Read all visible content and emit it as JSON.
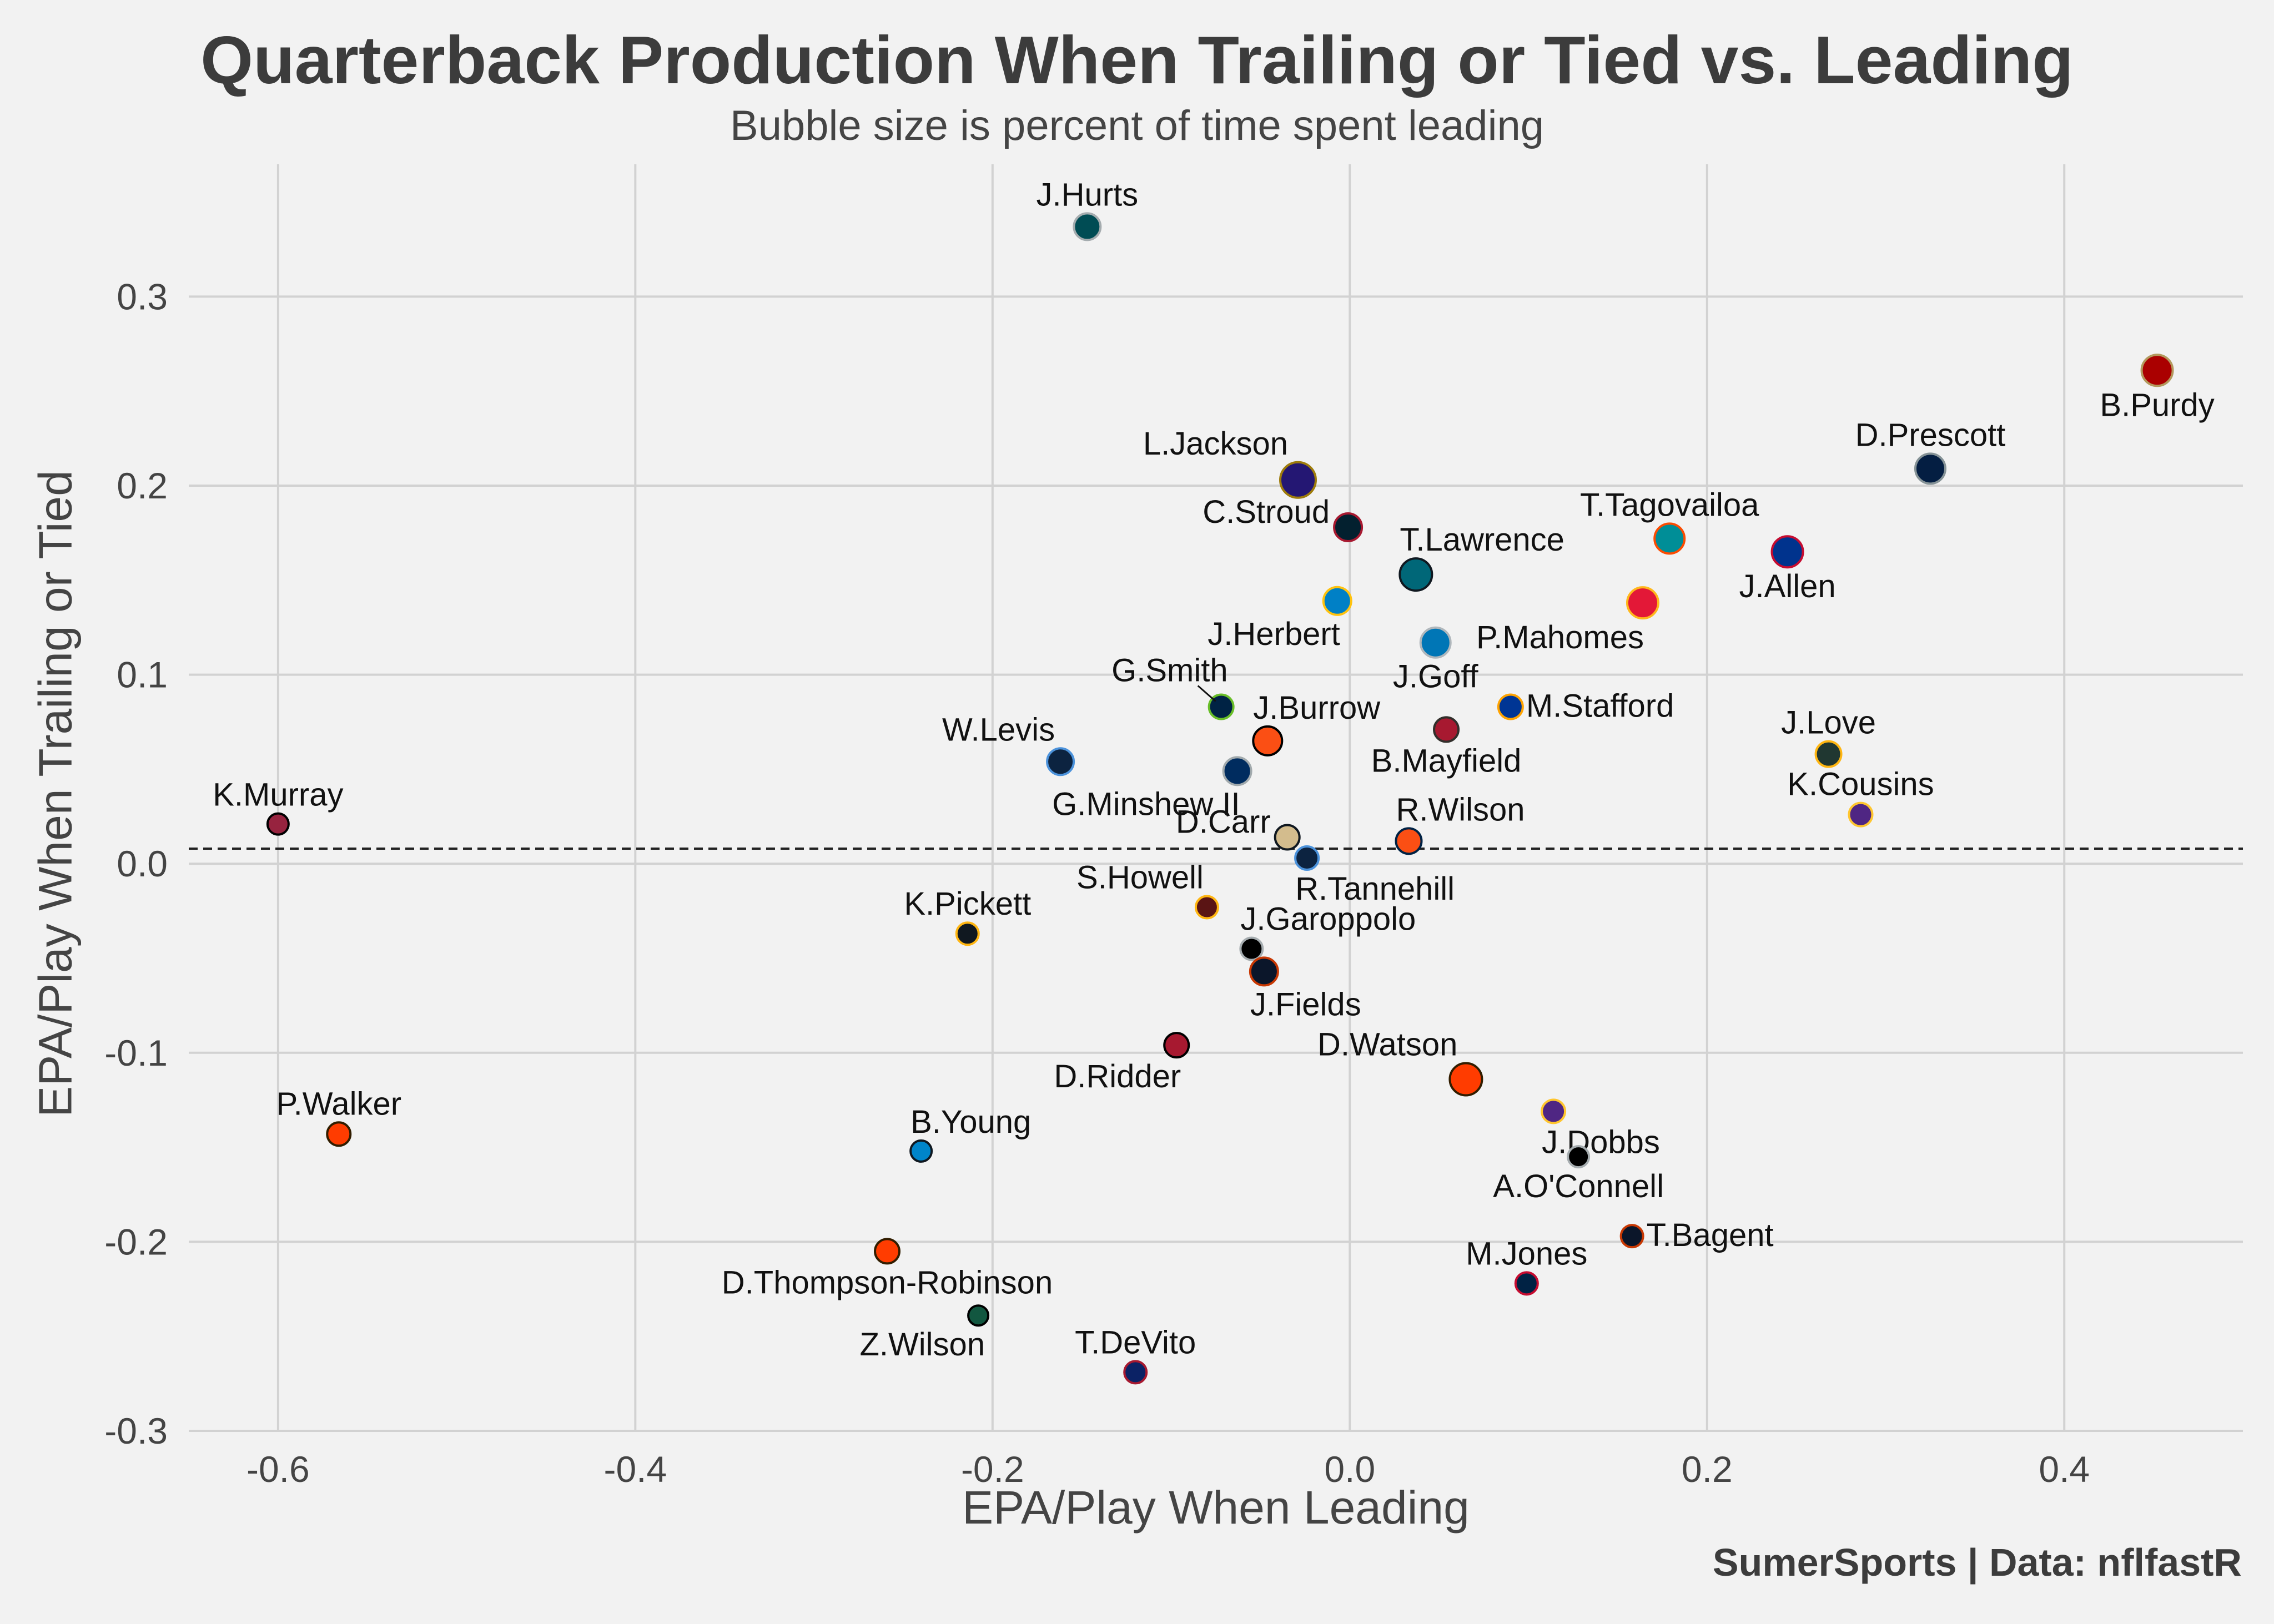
{
  "chart_data": {
    "type": "scatter",
    "title": "Quarterback Production When Trailing or Tied vs. Leading",
    "subtitle": "Bubble size is percent of time spent leading",
    "xlabel": "EPA/Play When Leading",
    "ylabel": "EPA/Play When Trailing or Tied",
    "caption": "SumerSports | Data: nflfastR",
    "xlim": [
      -0.65,
      0.5
    ],
    "ylim": [
      -0.3,
      0.37
    ],
    "xticks": [
      -0.6,
      -0.4,
      -0.2,
      0.0,
      0.2,
      0.4
    ],
    "xtick_labels": [
      "-0.6",
      "-0.4",
      "-0.2",
      "0.0",
      "0.2",
      "0.4"
    ],
    "yticks": [
      -0.3,
      -0.2,
      -0.1,
      0.0,
      0.1,
      0.2,
      0.3
    ],
    "ytick_labels": [
      "-0.3",
      "-0.2",
      "-0.1",
      "0.0",
      "0.1",
      "0.2",
      "0.3"
    ],
    "reference_line_y": 0.008,
    "grid": true,
    "points": [
      {
        "label": "J.Hurts",
        "x": -0.147,
        "y": 0.337,
        "size": 0.55,
        "color": "#004C54",
        "edge": "#A5ACAF",
        "label_pos": "above"
      },
      {
        "label": "B.Purdy",
        "x": 0.452,
        "y": 0.261,
        "size": 0.75,
        "color": "#AA0000",
        "edge": "#B3995D",
        "label_pos": "below"
      },
      {
        "label": "D.Prescott",
        "x": 0.325,
        "y": 0.209,
        "size": 0.7,
        "color": "#041E42",
        "edge": "#869397",
        "label_pos": "above"
      },
      {
        "label": "L.Jackson",
        "x": -0.029,
        "y": 0.203,
        "size": 0.95,
        "color": "#241773",
        "edge": "#9E7C0C",
        "label_pos": "above-left"
      },
      {
        "label": "C.Stroud",
        "x": -0.001,
        "y": 0.178,
        "size": 0.6,
        "color": "#03202F",
        "edge": "#A71930",
        "label_pos": "left"
      },
      {
        "label": "T.Tagovailoa",
        "x": 0.179,
        "y": 0.172,
        "size": 0.7,
        "color": "#008E97",
        "edge": "#FC4C02",
        "label_pos": "above"
      },
      {
        "label": "J.Allen",
        "x": 0.245,
        "y": 0.165,
        "size": 0.75,
        "color": "#00338D",
        "edge": "#C60C30",
        "label_pos": "below"
      },
      {
        "label": "T.Lawrence",
        "x": 0.037,
        "y": 0.153,
        "size": 0.8,
        "color": "#006778",
        "edge": "#101820",
        "label_pos": "above-right"
      },
      {
        "label": "P.Mahomes",
        "x": 0.164,
        "y": 0.138,
        "size": 0.75,
        "color": "#E31837",
        "edge": "#FFB81C",
        "label_pos": "below-left"
      },
      {
        "label": "J.Herbert",
        "x": -0.007,
        "y": 0.139,
        "size": 0.6,
        "color": "#0080C6",
        "edge": "#FFC20E",
        "label_pos": "below-left"
      },
      {
        "label": "J.Goff",
        "x": 0.048,
        "y": 0.117,
        "size": 0.7,
        "color": "#0076B6",
        "edge": "#B0B7BC",
        "label_pos": "below"
      },
      {
        "label": "G.Smith",
        "x": -0.072,
        "y": 0.083,
        "size": 0.45,
        "color": "#002244",
        "edge": "#69BE28",
        "label_pos": "above-left-leader"
      },
      {
        "label": "M.Stafford",
        "x": 0.09,
        "y": 0.083,
        "size": 0.45,
        "color": "#003594",
        "edge": "#FFA300",
        "label_pos": "right"
      },
      {
        "label": "B.Mayfield",
        "x": 0.054,
        "y": 0.071,
        "size": 0.45,
        "color": "#A71930",
        "edge": "#322F2B",
        "label_pos": "below"
      },
      {
        "label": "J.Burrow",
        "x": -0.046,
        "y": 0.065,
        "size": 0.65,
        "color": "#FB4F14",
        "edge": "#000000",
        "label_pos": "above-right"
      },
      {
        "label": "J.Love",
        "x": 0.268,
        "y": 0.058,
        "size": 0.5,
        "color": "#203731",
        "edge": "#FFB612",
        "label_pos": "above"
      },
      {
        "label": "W.Levis",
        "x": -0.162,
        "y": 0.054,
        "size": 0.55,
        "color": "#0C2340",
        "edge": "#4B92DB",
        "label_pos": "above-left"
      },
      {
        "label": "G.Minshew II",
        "x": -0.063,
        "y": 0.049,
        "size": 0.6,
        "color": "#002C5F",
        "edge": "#A2AAAD",
        "label_pos": "below-left"
      },
      {
        "label": "K.Cousins",
        "x": 0.286,
        "y": 0.026,
        "size": 0.4,
        "color": "#4F2683",
        "edge": "#FFC62F",
        "label_pos": "above"
      },
      {
        "label": "K.Murray",
        "x": -0.6,
        "y": 0.021,
        "size": 0.3,
        "color": "#97233F",
        "edge": "#000000",
        "label_pos": "above"
      },
      {
        "label": "D.Carr",
        "x": -0.035,
        "y": 0.014,
        "size": 0.45,
        "color": "#D3BC8D",
        "edge": "#101820",
        "label_pos": "left"
      },
      {
        "label": "R.Wilson",
        "x": 0.033,
        "y": 0.012,
        "size": 0.5,
        "color": "#FB4F14",
        "edge": "#002244",
        "label_pos": "above-right"
      },
      {
        "label": "R.Tannehill",
        "x": -0.024,
        "y": 0.003,
        "size": 0.4,
        "color": "#0C2340",
        "edge": "#4B92DB",
        "label_pos": "below-right"
      },
      {
        "label": "S.Howell",
        "x": -0.08,
        "y": -0.023,
        "size": 0.35,
        "color": "#5A1414",
        "edge": "#FFB612",
        "label_pos": "above-left"
      },
      {
        "label": "K.Pickett",
        "x": -0.214,
        "y": -0.037,
        "size": 0.35,
        "color": "#101820",
        "edge": "#FFB612",
        "label_pos": "above"
      },
      {
        "label": "J.Garoppolo",
        "x": -0.055,
        "y": -0.045,
        "size": 0.35,
        "color": "#000000",
        "edge": "#A5ACAF",
        "label_pos": "above-right"
      },
      {
        "label": "J.Fields",
        "x": -0.048,
        "y": -0.057,
        "size": 0.6,
        "color": "#0B162A",
        "edge": "#C83803",
        "label_pos": "below-right"
      },
      {
        "label": "D.Ridder",
        "x": -0.097,
        "y": -0.096,
        "size": 0.45,
        "color": "#A71930",
        "edge": "#000000",
        "label_pos": "below-left"
      },
      {
        "label": "D.Watson",
        "x": 0.065,
        "y": -0.114,
        "size": 0.8,
        "color": "#FF3C00",
        "edge": "#311D00",
        "label_pos": "above-left"
      },
      {
        "label": "J.Dobbs",
        "x": 0.114,
        "y": -0.131,
        "size": 0.4,
        "color": "#4F2683",
        "edge": "#FFC62F",
        "label_pos": "below-right"
      },
      {
        "label": "P.Walker",
        "x": -0.566,
        "y": -0.143,
        "size": 0.4,
        "color": "#FF3C00",
        "edge": "#311D00",
        "label_pos": "above"
      },
      {
        "label": "B.Young",
        "x": -0.24,
        "y": -0.152,
        "size": 0.3,
        "color": "#0085CA",
        "edge": "#101820",
        "label_pos": "above-right"
      },
      {
        "label": "A.O'Connell",
        "x": 0.128,
        "y": -0.155,
        "size": 0.3,
        "color": "#000000",
        "edge": "#A5ACAF",
        "label_pos": "below"
      },
      {
        "label": "T.Bagent",
        "x": 0.158,
        "y": -0.197,
        "size": 0.35,
        "color": "#0B162A",
        "edge": "#C83803",
        "label_pos": "right"
      },
      {
        "label": "D.Thompson-Robinson",
        "x": -0.259,
        "y": -0.205,
        "size": 0.45,
        "color": "#FF3C00",
        "edge": "#311D00",
        "label_pos": "below"
      },
      {
        "label": "M.Jones",
        "x": 0.099,
        "y": -0.222,
        "size": 0.35,
        "color": "#002244",
        "edge": "#C60C30",
        "label_pos": "above"
      },
      {
        "label": "Z.Wilson",
        "x": -0.208,
        "y": -0.239,
        "size": 0.25,
        "color": "#125740",
        "edge": "#000000",
        "label_pos": "below-left"
      },
      {
        "label": "T.DeVito",
        "x": -0.12,
        "y": -0.269,
        "size": 0.35,
        "color": "#0B2265",
        "edge": "#A71930",
        "label_pos": "above"
      }
    ]
  }
}
